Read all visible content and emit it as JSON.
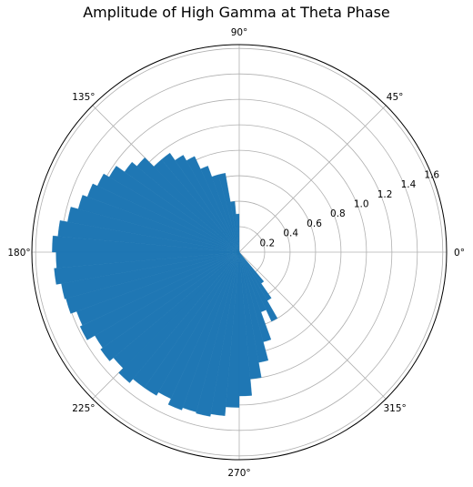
{
  "chart_data": {
    "type": "bar",
    "projection": "polar",
    "title": "Amplitude of High Gamma at Theta Phase",
    "angle_ticks": [
      "0°",
      "45°",
      "90°",
      "135°",
      "180°",
      "225°",
      "270°",
      "315°"
    ],
    "radial_ticks": [
      "0.2",
      "0.4",
      "0.6",
      "0.8",
      "1.0",
      "1.2",
      "1.4",
      "1.6"
    ],
    "radial_values": [
      0.2,
      0.4,
      0.6,
      0.8,
      1.0,
      1.2,
      1.4,
      1.6
    ],
    "rlim": [
      0,
      1.63
    ],
    "grid": true,
    "bar_color": "#1f77b4",
    "bins": {
      "start_deg": 90,
      "width_deg": 5,
      "values": [
        0.3,
        0.4,
        0.63,
        0.63,
        0.72,
        0.83,
        0.88,
        0.95,
        0.95,
        1.05,
        1.1,
        1.18,
        1.23,
        1.27,
        1.31,
        1.37,
        1.43,
        1.47,
        1.44,
        1.46,
        1.42,
        1.41,
        1.36,
        1.38,
        1.31,
        1.33,
        1.29,
        1.34,
        1.3,
        1.3,
        1.27,
        1.32,
        1.3,
        1.31,
        1.29,
        1.22,
        1.13,
        1.0,
        0.88,
        0.73,
        0.5,
        0.6,
        0.44,
        0.3
      ]
    }
  }
}
